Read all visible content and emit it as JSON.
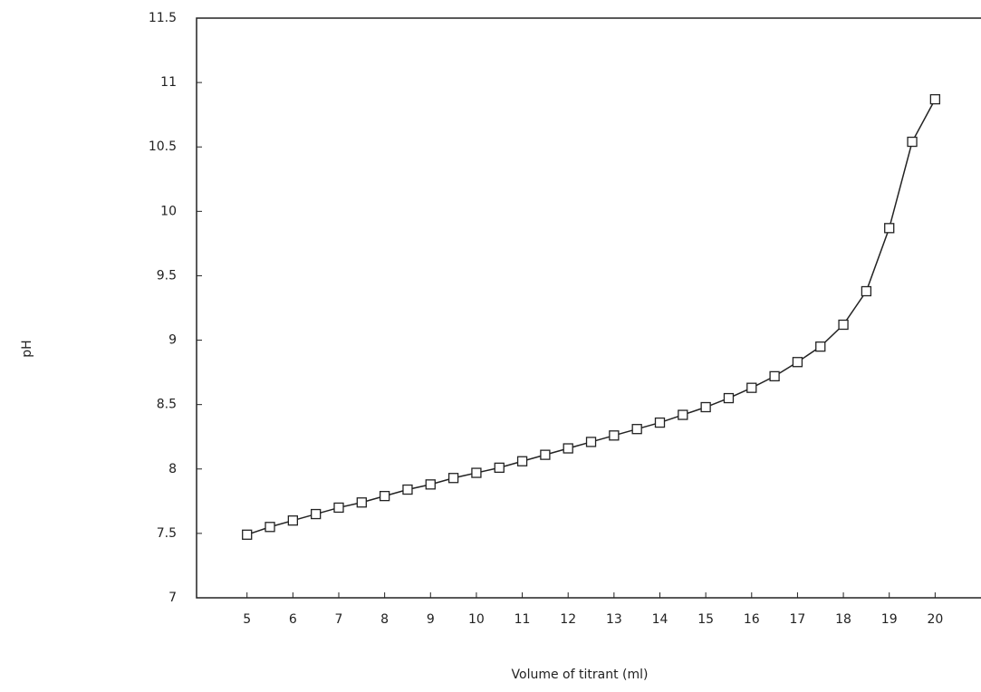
{
  "chart_data": {
    "type": "line",
    "xlabel": "Volume of titrant (ml)",
    "ylabel": "pH",
    "x": [
      5,
      5.5,
      6,
      6.5,
      7,
      7.5,
      8,
      8.5,
      9,
      9.5,
      10,
      10.5,
      11,
      11.5,
      12,
      12.5,
      13,
      13.5,
      14,
      14.5,
      15,
      15.5,
      16,
      16.5,
      17,
      17.5,
      18,
      18.5,
      19,
      19.5,
      20
    ],
    "series": [
      {
        "color": "#222222",
        "marker": "square",
        "values": [
          7.49,
          7.55,
          7.6,
          7.65,
          7.7,
          7.74,
          7.79,
          7.84,
          7.88,
          7.93,
          7.97,
          8.01,
          8.06,
          8.11,
          8.16,
          8.21,
          8.26,
          8.31,
          8.36,
          8.42,
          8.48,
          8.55,
          8.63,
          8.72,
          8.83,
          8.95,
          9.12,
          9.38,
          9.87,
          10.54,
          10.87
        ]
      }
    ],
    "xlim": [
      3.9,
      21
    ],
    "xticks": [
      5,
      6,
      7,
      8,
      9,
      10,
      11,
      12,
      13,
      14,
      15,
      16,
      17,
      18,
      19,
      20
    ],
    "ylim": [
      7,
      11.5
    ],
    "yticks": [
      7,
      7.5,
      8,
      8.5,
      9,
      9.5,
      10,
      10.5,
      11,
      11.5
    ],
    "grid": false
  }
}
